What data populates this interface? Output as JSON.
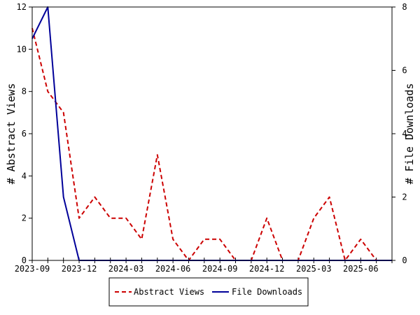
{
  "chart_data": {
    "type": "line",
    "x": [
      "2023-09",
      "2023-10",
      "2023-11",
      "2023-12",
      "2024-01",
      "2024-02",
      "2024-03",
      "2024-04",
      "2024-05",
      "2024-06",
      "2024-07",
      "2024-08",
      "2024-09",
      "2024-10",
      "2024-11",
      "2024-12",
      "2025-01",
      "2025-02",
      "2025-03",
      "2025-04",
      "2025-05",
      "2025-06",
      "2025-07",
      "2025-08"
    ],
    "x_tick_labels": [
      "2023-09",
      "2023-12",
      "2024-03",
      "2024-06",
      "2024-09",
      "2024-12",
      "2025-03",
      "2025-06"
    ],
    "y_left": {
      "label": "# Abstract Views",
      "range": [
        0,
        12
      ],
      "ticks": [
        0,
        2,
        4,
        6,
        8,
        10,
        12
      ]
    },
    "y_right": {
      "label": "# File Downloads",
      "range": [
        0,
        8
      ],
      "ticks": [
        0,
        2,
        4,
        6,
        8
      ]
    },
    "series": [
      {
        "name": "Abstract Views",
        "axis": "left",
        "color": "#cc0000",
        "dash": "dashed",
        "values": [
          11,
          8,
          7,
          2,
          3,
          2,
          2,
          1,
          5,
          1,
          0,
          1,
          1,
          0,
          0,
          2,
          0,
          0,
          2,
          3,
          0,
          1,
          0,
          0
        ]
      },
      {
        "name": "File Downloads",
        "axis": "right",
        "color": "#000099",
        "dash": "solid",
        "values": [
          7,
          8,
          2,
          0,
          0,
          0,
          0,
          0,
          0,
          0,
          0,
          0,
          0,
          0,
          0,
          0,
          0,
          0,
          0,
          0,
          0,
          0,
          0,
          0
        ]
      }
    ],
    "grid": false,
    "legend_position": "bottom-center"
  }
}
